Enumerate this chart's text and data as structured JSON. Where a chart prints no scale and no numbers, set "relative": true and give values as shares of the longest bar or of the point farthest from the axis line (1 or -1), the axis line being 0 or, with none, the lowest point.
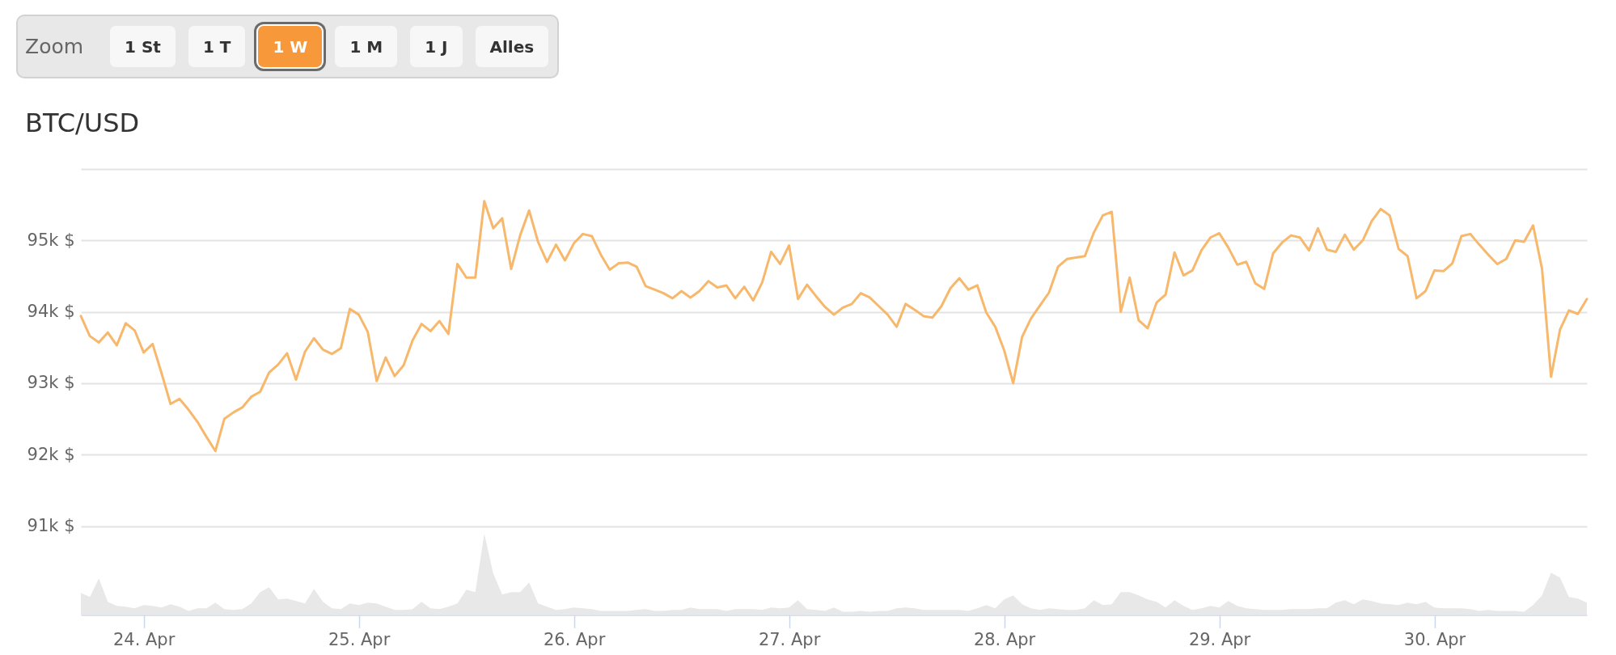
{
  "chart_data": [
    {
      "type": "line",
      "title": "BTC/USD",
      "annotations": [
        "Zoom",
        "1 St",
        "1 T",
        "1 W",
        "1 M",
        "1 J",
        "Alles"
      ],
      "x": [
        "--04-23T17:00",
        "--04-23T18:00",
        "--04-23T19:00",
        "--04-23T20:00",
        "--04-23T21:00",
        "--04-23T22:00",
        "--04-23T23:00",
        "--04-24T00:00",
        "--04-24T01:00",
        "--04-24T02:00",
        "--04-24T03:00",
        "--04-24T04:00",
        "--04-24T05:00",
        "--04-24T06:00",
        "--04-24T07:00",
        "--04-24T08:00",
        "--04-24T09:00",
        "--04-24T10:00",
        "--04-24T11:00",
        "--04-24T12:00",
        "--04-24T13:00",
        "--04-24T14:00",
        "--04-24T15:00",
        "--04-24T16:00",
        "--04-24T17:00",
        "--04-24T18:00",
        "--04-24T19:00",
        "--04-24T20:00",
        "--04-24T21:00",
        "--04-24T22:00",
        "--04-24T23:00",
        "--04-25T00:00",
        "--04-25T01:00",
        "--04-25T02:00",
        "--04-25T03:00",
        "--04-25T04:00",
        "--04-25T05:00",
        "--04-25T06:00",
        "--04-25T07:00",
        "--04-25T08:00",
        "--04-25T09:00",
        "--04-25T10:00",
        "--04-25T11:00",
        "--04-25T12:00",
        "--04-25T13:00",
        "--04-25T14:00",
        "--04-25T15:00",
        "--04-25T16:00",
        "--04-25T17:00",
        "--04-25T18:00",
        "--04-25T19:00",
        "--04-25T20:00",
        "--04-25T21:00",
        "--04-25T22:00",
        "--04-25T23:00",
        "--04-26T00:00",
        "--04-26T01:00",
        "--04-26T02:00",
        "--04-26T03:00",
        "--04-26T04:00",
        "--04-26T05:00",
        "--04-26T06:00",
        "--04-26T07:00",
        "--04-26T08:00",
        "--04-26T09:00",
        "--04-26T10:00",
        "--04-26T11:00",
        "--04-26T12:00",
        "--04-26T13:00",
        "--04-26T14:00",
        "--04-26T15:00",
        "--04-26T16:00",
        "--04-26T17:00",
        "--04-26T18:00",
        "--04-26T19:00",
        "--04-26T20:00",
        "--04-26T21:00",
        "--04-26T22:00",
        "--04-26T23:00",
        "--04-27T00:00",
        "--04-27T01:00",
        "--04-27T02:00",
        "--04-27T03:00",
        "--04-27T04:00",
        "--04-27T05:00",
        "--04-27T06:00",
        "--04-27T07:00",
        "--04-27T08:00",
        "--04-27T09:00",
        "--04-27T10:00",
        "--04-27T11:00",
        "--04-27T12:00",
        "--04-27T13:00",
        "--04-27T14:00",
        "--04-27T15:00",
        "--04-27T16:00",
        "--04-27T17:00",
        "--04-27T18:00",
        "--04-27T19:00",
        "--04-27T20:00",
        "--04-27T21:00",
        "--04-27T22:00",
        "--04-27T23:00",
        "--04-28T00:00",
        "--04-28T01:00",
        "--04-28T02:00",
        "--04-28T03:00",
        "--04-28T04:00",
        "--04-28T05:00",
        "--04-28T06:00",
        "--04-28T07:00",
        "--04-28T08:00",
        "--04-28T09:00",
        "--04-28T10:00",
        "--04-28T11:00",
        "--04-28T12:00",
        "--04-28T13:00",
        "--04-28T14:00",
        "--04-28T15:00",
        "--04-28T16:00",
        "--04-28T17:00",
        "--04-28T18:00",
        "--04-28T19:00",
        "--04-28T20:00",
        "--04-28T21:00",
        "--04-28T22:00",
        "--04-28T23:00",
        "--04-29T00:00",
        "--04-29T01:00",
        "--04-29T02:00",
        "--04-29T03:00",
        "--04-29T04:00",
        "--04-29T05:00",
        "--04-29T06:00",
        "--04-29T07:00",
        "--04-29T08:00",
        "--04-29T09:00",
        "--04-29T10:00",
        "--04-29T11:00",
        "--04-29T12:00",
        "--04-29T13:00",
        "--04-29T14:00",
        "--04-29T15:00",
        "--04-29T16:00",
        "--04-29T17:00",
        "--04-29T18:00",
        "--04-29T19:00",
        "--04-29T20:00",
        "--04-29T21:00",
        "--04-29T22:00",
        "--04-29T23:00",
        "--04-30T00:00",
        "--04-30T01:00",
        "--04-30T02:00",
        "--04-30T03:00",
        "--04-30T04:00",
        "--04-30T05:00",
        "--04-30T06:00",
        "--04-30T07:00",
        "--04-30T08:00",
        "--04-30T09:00",
        "--04-30T10:00",
        "--04-30T11:00",
        "--04-30T12:00",
        "--04-30T13:00",
        "--04-30T14:00",
        "--04-30T15:00",
        "--04-30T16:00",
        "--04-30T17:00"
      ],
      "values": [
        93940,
        93660,
        93570,
        93710,
        93530,
        93840,
        93740,
        93430,
        93550,
        93140,
        92710,
        92780,
        92630,
        92460,
        92250,
        92050,
        92500,
        92590,
        92660,
        92810,
        92880,
        93150,
        93260,
        93420,
        93050,
        93440,
        93630,
        93470,
        93410,
        93490,
        94040,
        93960,
        93720,
        93030,
        93360,
        93100,
        93250,
        93600,
        93830,
        93730,
        93870,
        93690,
        94670,
        94480,
        94480,
        95550,
        95170,
        95310,
        94600,
        95070,
        95420,
        94980,
        94700,
        94940,
        94720,
        94960,
        95090,
        95060,
        94800,
        94590,
        94680,
        94690,
        94630,
        94360,
        94310,
        94260,
        94190,
        94290,
        94200,
        94290,
        94430,
        94340,
        94370,
        94190,
        94350,
        94160,
        94410,
        94840,
        94670,
        94930,
        94180,
        94380,
        94220,
        94070,
        93960,
        94060,
        94110,
        94260,
        94200,
        94080,
        93960,
        93790,
        94110,
        94030,
        93940,
        93920,
        94080,
        94330,
        94470,
        94310,
        94370,
        93990,
        93790,
        93460,
        93000,
        93650,
        93910,
        94090,
        94270,
        94630,
        94740,
        94760,
        94780,
        95110,
        95350,
        95400,
        94000,
        94480,
        93880,
        93770,
        94130,
        94240,
        94830,
        94510,
        94580,
        94860,
        95040,
        95100,
        94900,
        94660,
        94700,
        94400,
        94320,
        94820,
        94970,
        95070,
        95040,
        94860,
        95170,
        94870,
        94840,
        95080,
        94870,
        95000,
        95270,
        95440,
        95350,
        94880,
        94780,
        94190,
        94290,
        94580,
        94570,
        94680,
        95060,
        95090,
        94940,
        94800,
        94670,
        94740,
        95000,
        94980,
        95210,
        94600,
        93090,
        93750,
        94020,
        93970,
        94180
      ],
      "color": "#f7b86c",
      "xlim": [
        "--04-23T17:00",
        "--04-30T17:00"
      ],
      "ylim": [
        91000,
        96000
      ],
      "yticks": [
        {
          "value": 91000,
          "label": "91k $"
        },
        {
          "value": 92000,
          "label": "92k $"
        },
        {
          "value": 93000,
          "label": "93k $"
        },
        {
          "value": 94000,
          "label": "94k $"
        },
        {
          "value": 95000,
          "label": "95k $"
        },
        {
          "value": 96000,
          "label": null
        }
      ],
      "grid": "y",
      "tick_labels": "y"
    },
    {
      "type": "area",
      "relative": true,
      "x": [
        "--04-23T17:00",
        "--04-23T18:00",
        "--04-23T19:00",
        "--04-23T20:00",
        "--04-23T21:00",
        "--04-23T22:00",
        "--04-23T23:00",
        "--04-24T00:00",
        "--04-24T01:00",
        "--04-24T02:00",
        "--04-24T03:00",
        "--04-24T04:00",
        "--04-24T05:00",
        "--04-24T06:00",
        "--04-24T07:00",
        "--04-24T08:00",
        "--04-24T09:00",
        "--04-24T10:00",
        "--04-24T11:00",
        "--04-24T12:00",
        "--04-24T13:00",
        "--04-24T14:00",
        "--04-24T15:00",
        "--04-24T16:00",
        "--04-24T17:00",
        "--04-24T18:00",
        "--04-24T19:00",
        "--04-24T20:00",
        "--04-24T21:00",
        "--04-24T22:00",
        "--04-24T23:00",
        "--04-25T00:00",
        "--04-25T01:00",
        "--04-25T02:00",
        "--04-25T03:00",
        "--04-25T04:00",
        "--04-25T05:00",
        "--04-25T06:00",
        "--04-25T07:00",
        "--04-25T08:00",
        "--04-25T09:00",
        "--04-25T10:00",
        "--04-25T11:00",
        "--04-25T12:00",
        "--04-25T13:00",
        "--04-25T14:00",
        "--04-25T15:00",
        "--04-25T16:00",
        "--04-25T17:00",
        "--04-25T18:00",
        "--04-25T19:00",
        "--04-25T20:00",
        "--04-25T21:00",
        "--04-25T22:00",
        "--04-25T23:00",
        "--04-26T00:00",
        "--04-26T01:00",
        "--04-26T02:00",
        "--04-26T03:00",
        "--04-26T04:00",
        "--04-26T05:00",
        "--04-26T06:00",
        "--04-26T07:00",
        "--04-26T08:00",
        "--04-26T09:00",
        "--04-26T10:00",
        "--04-26T11:00",
        "--04-26T12:00",
        "--04-26T13:00",
        "--04-26T14:00",
        "--04-26T15:00",
        "--04-26T16:00",
        "--04-26T17:00",
        "--04-26T18:00",
        "--04-26T19:00",
        "--04-26T20:00",
        "--04-26T21:00",
        "--04-26T22:00",
        "--04-26T23:00",
        "--04-27T00:00",
        "--04-27T01:00",
        "--04-27T02:00",
        "--04-27T03:00",
        "--04-27T04:00",
        "--04-27T05:00",
        "--04-27T06:00",
        "--04-27T07:00",
        "--04-27T08:00",
        "--04-27T09:00",
        "--04-27T10:00",
        "--04-27T11:00",
        "--04-27T12:00",
        "--04-27T13:00",
        "--04-27T14:00",
        "--04-27T15:00",
        "--04-27T16:00",
        "--04-27T17:00",
        "--04-27T18:00",
        "--04-27T19:00",
        "--04-27T20:00",
        "--04-27T21:00",
        "--04-27T22:00",
        "--04-27T23:00",
        "--04-28T00:00",
        "--04-28T01:00",
        "--04-28T02:00",
        "--04-28T03:00",
        "--04-28T04:00",
        "--04-28T05:00",
        "--04-28T06:00",
        "--04-28T07:00",
        "--04-28T08:00",
        "--04-28T09:00",
        "--04-28T10:00",
        "--04-28T11:00",
        "--04-28T12:00",
        "--04-28T13:00",
        "--04-28T14:00",
        "--04-28T15:00",
        "--04-28T16:00",
        "--04-28T17:00",
        "--04-28T18:00",
        "--04-28T19:00",
        "--04-28T20:00",
        "--04-28T21:00",
        "--04-28T22:00",
        "--04-28T23:00",
        "--04-29T00:00",
        "--04-29T01:00",
        "--04-29T02:00",
        "--04-29T03:00",
        "--04-29T04:00",
        "--04-29T05:00",
        "--04-29T06:00",
        "--04-29T07:00",
        "--04-29T08:00",
        "--04-29T09:00",
        "--04-29T10:00",
        "--04-29T11:00",
        "--04-29T12:00",
        "--04-29T13:00",
        "--04-29T14:00",
        "--04-29T15:00",
        "--04-29T16:00",
        "--04-29T17:00",
        "--04-29T18:00",
        "--04-29T19:00",
        "--04-29T20:00",
        "--04-29T21:00",
        "--04-29T22:00",
        "--04-29T23:00",
        "--04-30T00:00",
        "--04-30T01:00",
        "--04-30T02:00",
        "--04-30T03:00",
        "--04-30T04:00",
        "--04-30T05:00",
        "--04-30T06:00",
        "--04-30T07:00",
        "--04-30T08:00",
        "--04-30T09:00",
        "--04-30T10:00",
        "--04-30T11:00",
        "--04-30T12:00",
        "--04-30T13:00",
        "--04-30T14:00",
        "--04-30T15:00",
        "--04-30T16:00",
        "--04-30T17:00"
      ],
      "values": [
        0.27,
        0.22,
        0.45,
        0.16,
        0.11,
        0.1,
        0.08,
        0.12,
        0.11,
        0.09,
        0.13,
        0.1,
        0.05,
        0.08,
        0.08,
        0.15,
        0.07,
        0.06,
        0.07,
        0.14,
        0.28,
        0.34,
        0.19,
        0.2,
        0.17,
        0.14,
        0.32,
        0.16,
        0.08,
        0.07,
        0.14,
        0.12,
        0.15,
        0.14,
        0.1,
        0.06,
        0.06,
        0.07,
        0.16,
        0.08,
        0.07,
        0.1,
        0.14,
        0.31,
        0.28,
        1,
        0.51,
        0.25,
        0.28,
        0.28,
        0.4,
        0.14,
        0.1,
        0.06,
        0.07,
        0.09,
        0.08,
        0.07,
        0.05,
        0.05,
        0.05,
        0.05,
        0.06,
        0.07,
        0.05,
        0.05,
        0.06,
        0.06,
        0.09,
        0.07,
        0.07,
        0.07,
        0.05,
        0.07,
        0.07,
        0.07,
        0.06,
        0.09,
        0.08,
        0.09,
        0.18,
        0.07,
        0.06,
        0.05,
        0.09,
        0.04,
        0.04,
        0.05,
        0.04,
        0.05,
        0.05,
        0.08,
        0.09,
        0.08,
        0.06,
        0.06,
        0.06,
        0.06,
        0.06,
        0.05,
        0.08,
        0.12,
        0.08,
        0.19,
        0.24,
        0.13,
        0.08,
        0.06,
        0.08,
        0.07,
        0.06,
        0.06,
        0.08,
        0.18,
        0.12,
        0.13,
        0.28,
        0.28,
        0.24,
        0.19,
        0.16,
        0.09,
        0.18,
        0.11,
        0.06,
        0.08,
        0.11,
        0.09,
        0.17,
        0.11,
        0.08,
        0.07,
        0.06,
        0.06,
        0.06,
        0.07,
        0.07,
        0.07,
        0.08,
        0.08,
        0.15,
        0.18,
        0.13,
        0.19,
        0.17,
        0.14,
        0.13,
        0.12,
        0.15,
        0.13,
        0.16,
        0.09,
        0.08,
        0.08,
        0.08,
        0.07,
        0.05,
        0.06,
        0.05,
        0.05,
        0.05,
        0.04,
        0.12,
        0.24,
        0.52,
        0.46,
        0.22,
        0.2,
        0.15
      ],
      "color": "#e8e8e8",
      "xlim": [
        "--04-23T17:00",
        "--04-30T17:00"
      ],
      "xticks": [
        {
          "value": "--04-24",
          "label": "24. Apr"
        },
        {
          "value": "--04-25",
          "label": "25. Apr"
        },
        {
          "value": "--04-26",
          "label": "26. Apr"
        },
        {
          "value": "--04-27",
          "label": "27. Apr"
        },
        {
          "value": "--04-28",
          "label": "28. Apr"
        },
        {
          "value": "--04-29",
          "label": "29. Apr"
        },
        {
          "value": "--04-30",
          "label": "30. Apr"
        }
      ]
    }
  ]
}
